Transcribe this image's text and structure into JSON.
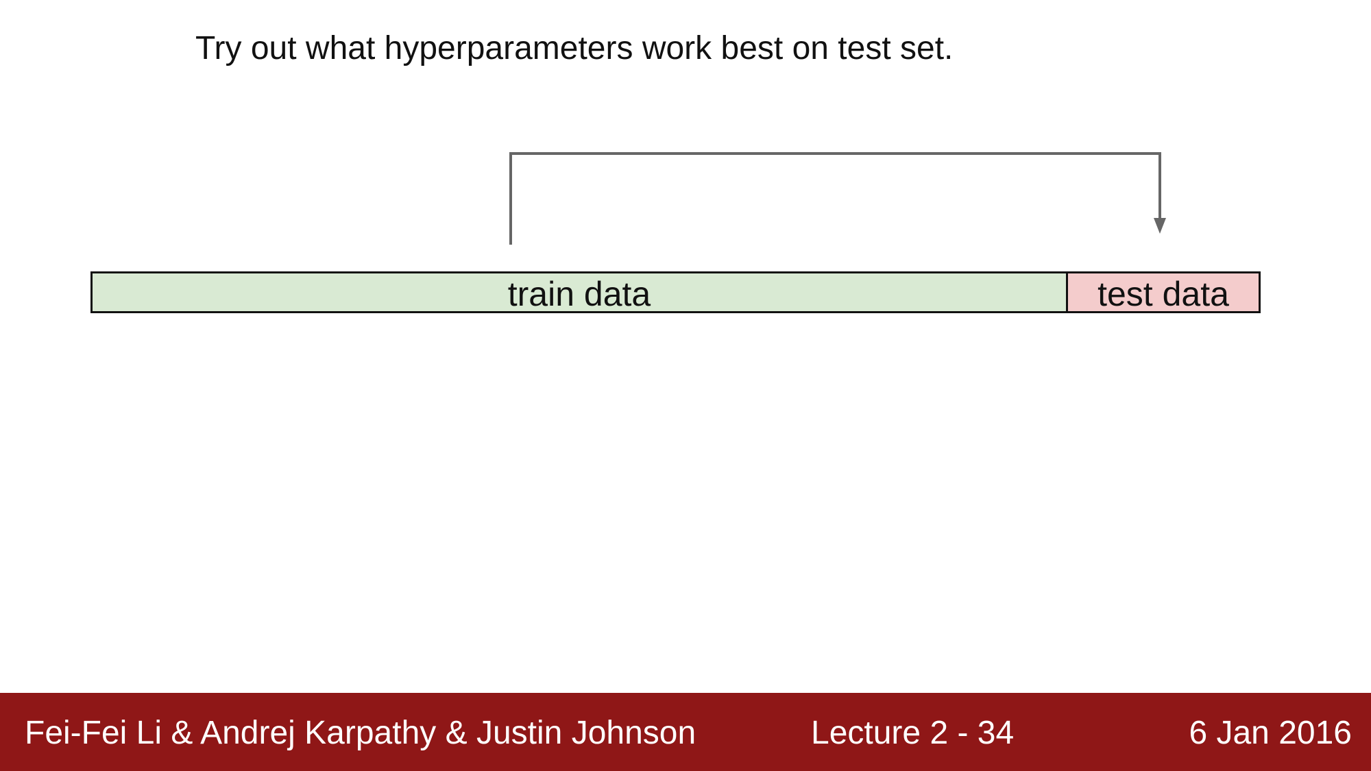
{
  "slide": {
    "text": "Try out what hyperparameters work best on test set.",
    "diagram": {
      "segments": [
        {
          "label": "train data",
          "color": "#d9ead3"
        },
        {
          "label": "test data",
          "color": "#f4cccc"
        }
      ],
      "connector_color": "#666666"
    }
  },
  "footer": {
    "authors": "Fei-Fei Li & Andrej Karpathy & Justin Johnson",
    "lecture": "Lecture 2 - 34",
    "date": "6 Jan 2016",
    "background": "#8f1717"
  }
}
